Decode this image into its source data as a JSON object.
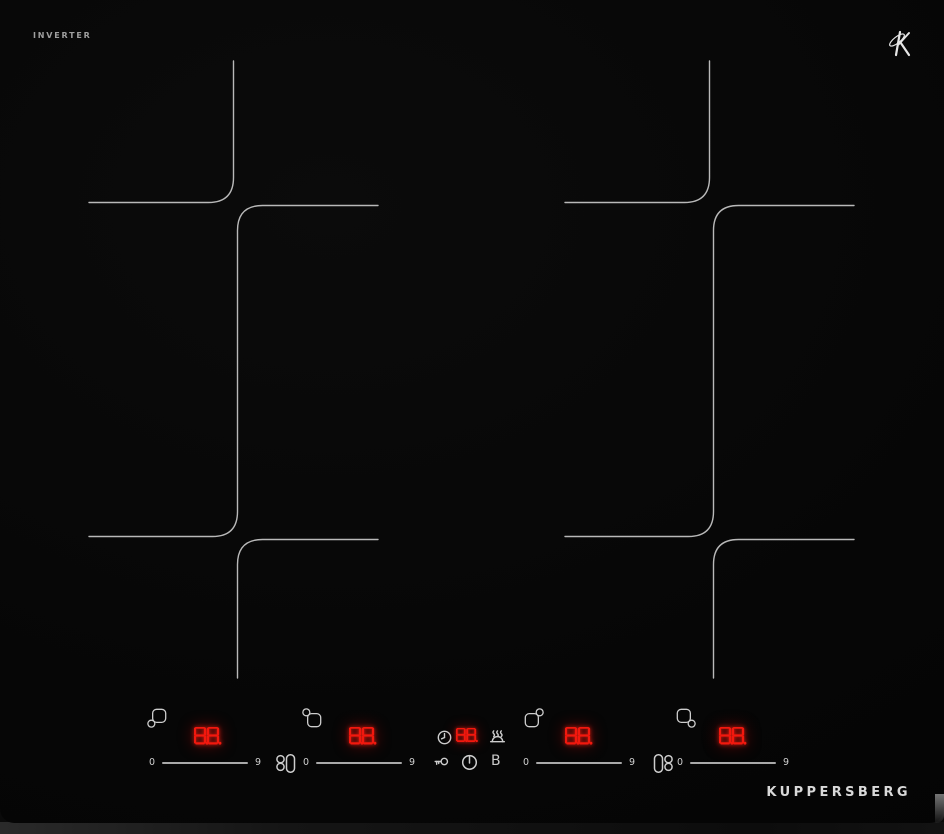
{
  "branding": {
    "top_left_label": "INVERTER",
    "logo_icon": "kuppersberg-k-monogram",
    "wordmark": "KUPPERSBERG"
  },
  "display_color": "#f2180e",
  "line_color": "#b9b9b9",
  "zones": [
    {
      "name": "front-left",
      "position_icon": "zone-position-front-left",
      "power_display": "8.8.",
      "slider_min": "0",
      "slider_max": "9"
    },
    {
      "name": "rear-left",
      "position_icon": "zone-position-rear-left",
      "power_display": "8.8.",
      "slider_min": "0",
      "slider_max": "9"
    },
    {
      "name": "rear-right",
      "position_icon": "zone-position-rear-right",
      "power_display": "8.8.",
      "slider_min": "0",
      "slider_max": "9"
    },
    {
      "name": "front-right",
      "position_icon": "zone-position-front-right",
      "power_display": "8.8.",
      "slider_min": "0",
      "slider_max": "9"
    }
  ],
  "timer": {
    "display": "8.8.",
    "icon": "timer-clock"
  },
  "function_keys": {
    "keep_warm_icon": "keep-warm",
    "key_lock_icon": "key-lock",
    "power_icon": "power",
    "boost_label": "B",
    "bridge_left_icon": "bridge-zones-left",
    "bridge_right_icon": "bridge-zones-right"
  }
}
